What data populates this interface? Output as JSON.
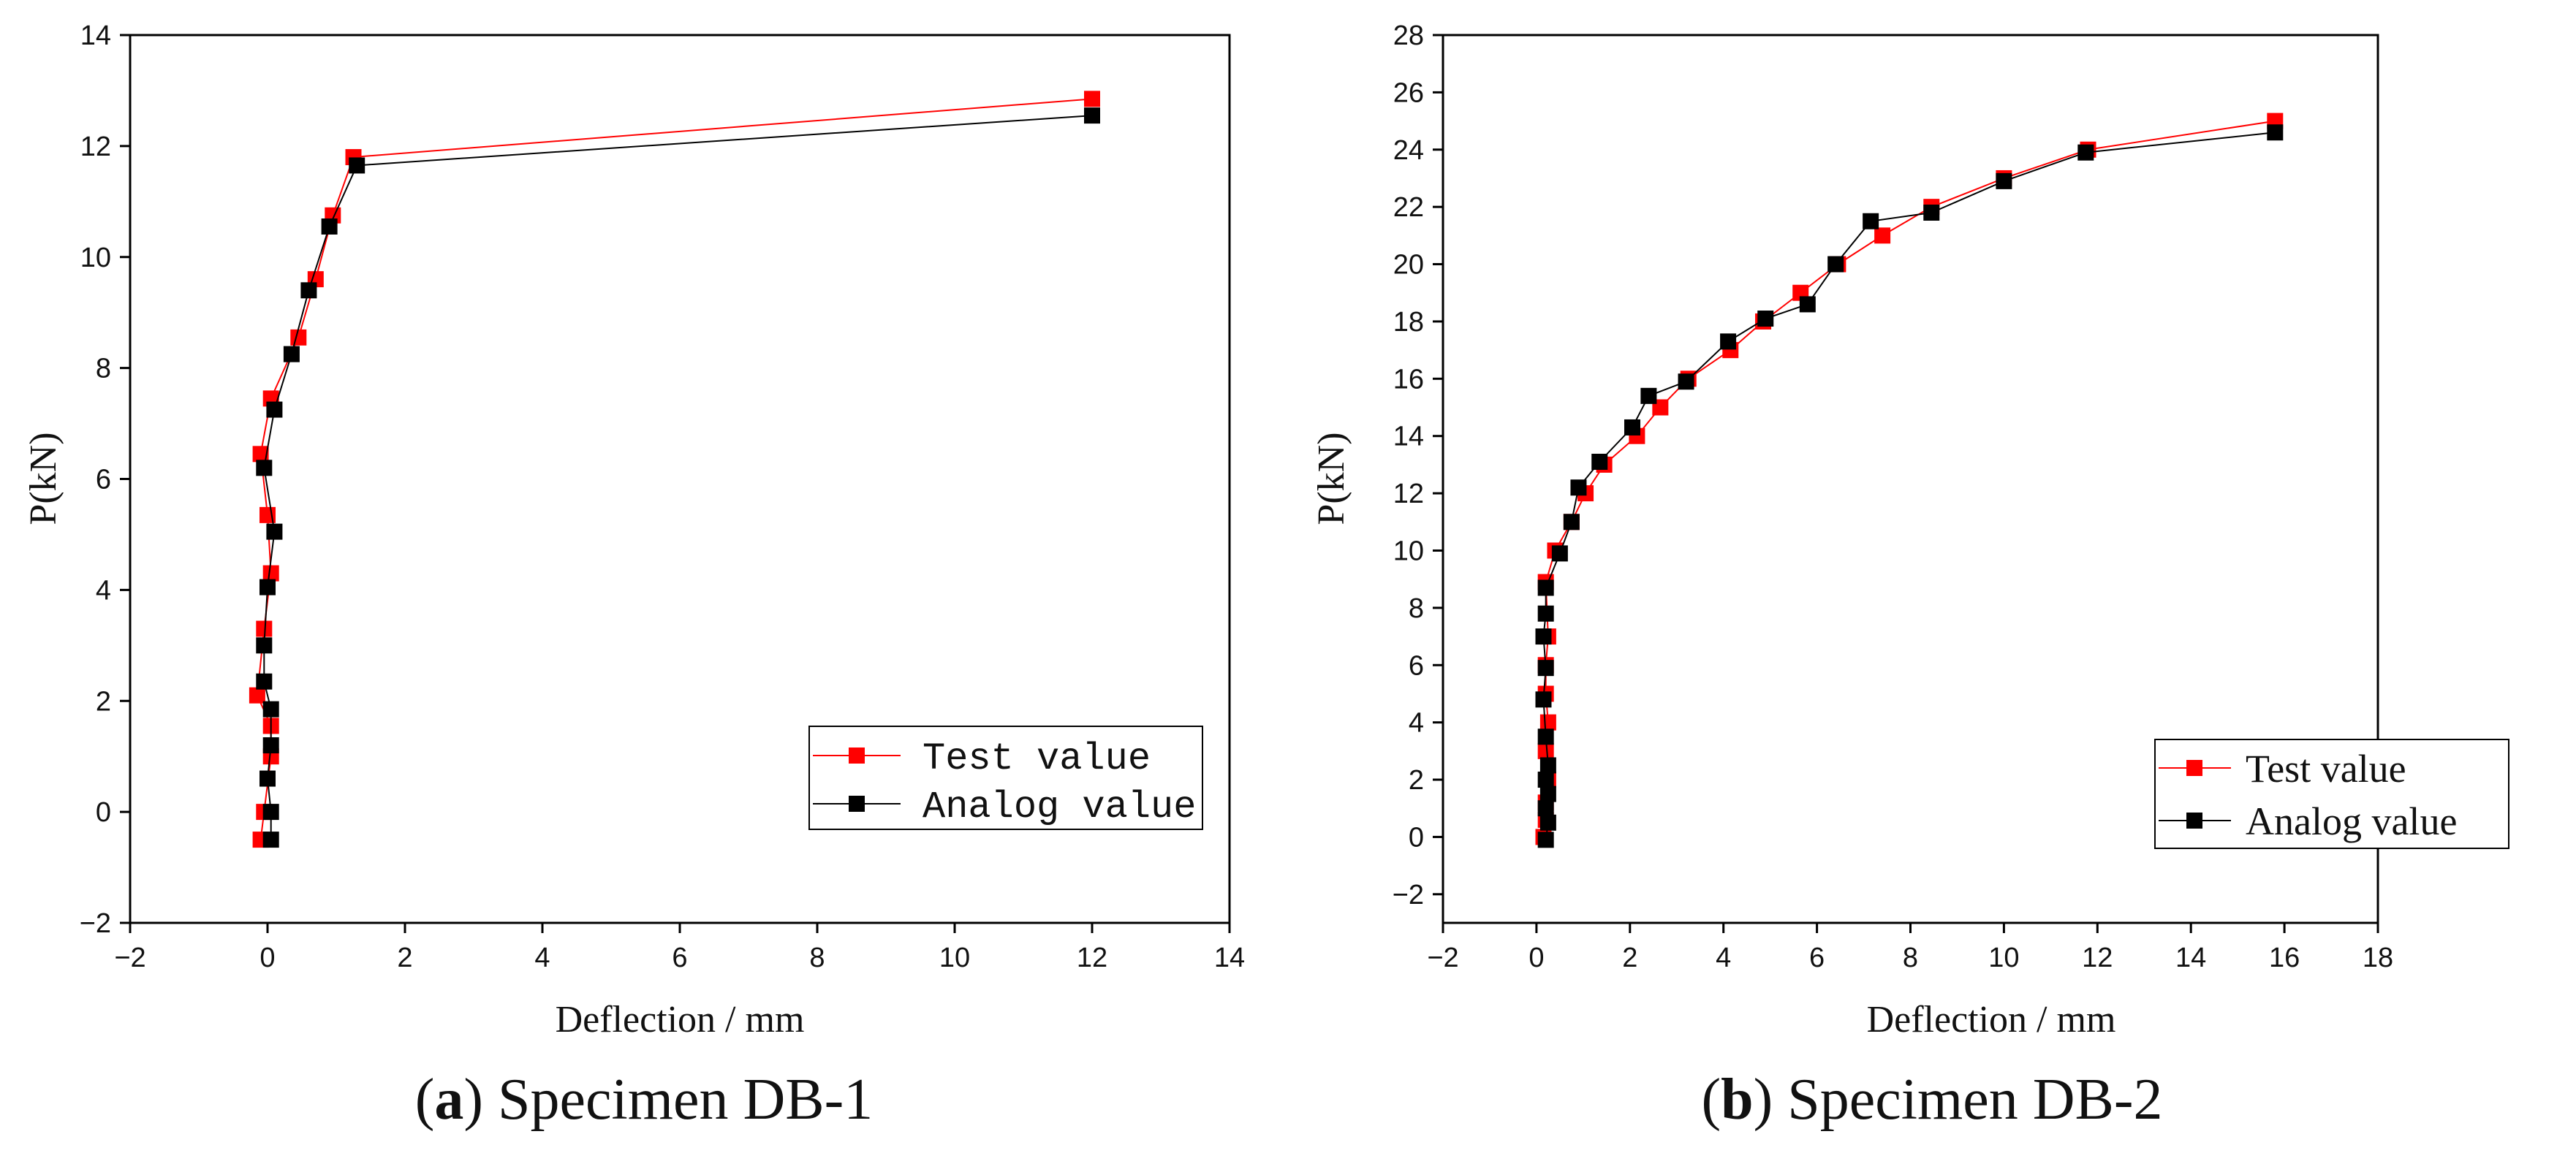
{
  "chart_data": [
    {
      "type": "line",
      "caption_tag": "a",
      "caption_text": "Specimen DB-1",
      "xlabel": "Deflection / mm",
      "ylabel": "P(kN)",
      "xlim": [
        -2,
        14
      ],
      "ylim": [
        -2,
        14
      ],
      "xticks": [
        "−2",
        "0",
        "2",
        "4",
        "6",
        "8",
        "10",
        "12",
        "14"
      ],
      "yticks": [
        "−2",
        "0",
        "2",
        "4",
        "6",
        "8",
        "10",
        "12",
        "14"
      ],
      "legend_position": "bottom-right",
      "series": [
        {
          "name": "Test value",
          "color": "#ff0000",
          "x": [
            -0.1,
            -0.05,
            0.05,
            0.05,
            -0.15,
            -0.05,
            0.05,
            0.0,
            -0.1,
            0.05,
            0.45,
            0.7,
            0.95,
            1.25,
            12.0
          ],
          "y": [
            -0.5,
            0.0,
            1.0,
            1.55,
            2.1,
            3.3,
            4.3,
            5.35,
            6.45,
            7.45,
            8.55,
            9.6,
            10.75,
            11.8,
            12.85
          ]
        },
        {
          "name": "Analog value",
          "color": "#000000",
          "x": [
            0.05,
            0.05,
            0.0,
            0.05,
            0.05,
            -0.05,
            -0.05,
            0.0,
            0.1,
            -0.05,
            0.1,
            0.35,
            0.6,
            0.9,
            1.3,
            12.0
          ],
          "y": [
            -0.5,
            0.0,
            0.6,
            1.2,
            1.85,
            2.35,
            3.0,
            4.05,
            5.05,
            6.2,
            7.25,
            8.25,
            9.4,
            10.55,
            11.65,
            12.55
          ]
        }
      ]
    },
    {
      "type": "line",
      "caption_tag": "b",
      "caption_text": "Specimen DB-2",
      "xlabel": "Deflection / mm",
      "ylabel": "P(kN)",
      "xlim": [
        -2,
        18
      ],
      "ylim": [
        -3,
        28
      ],
      "xticks": [
        "−2",
        "0",
        "2",
        "4",
        "6",
        "8",
        "10",
        "12",
        "14",
        "16",
        "18"
      ],
      "yticks": [
        "−2",
        "0",
        "2",
        "4",
        "6",
        "8",
        "10",
        "12",
        "14",
        "16",
        "18",
        "20",
        "22",
        "24",
        "26",
        "28"
      ],
      "legend_position": "bottom-right",
      "series": [
        {
          "name": "Test value",
          "color": "#ff0000",
          "x": [
            0.15,
            0.2,
            0.2,
            0.25,
            0.2,
            0.25,
            0.2,
            0.2,
            0.25,
            0.2,
            0.4,
            0.75,
            1.05,
            1.45,
            2.15,
            2.65,
            3.25,
            4.15,
            4.85,
            5.65,
            6.45,
            7.4,
            8.45,
            10.0,
            11.8,
            15.8
          ],
          "y": [
            0.0,
            0.6,
            1.2,
            2.0,
            3.0,
            4.0,
            5.0,
            6.0,
            7.0,
            8.9,
            10.0,
            11.0,
            12.0,
            13.0,
            14.0,
            15.0,
            16.0,
            17.0,
            18.0,
            19.0,
            20.0,
            21.0,
            22.0,
            23.0,
            24.0,
            25.0
          ]
        },
        {
          "name": "Analog value",
          "color": "#000000",
          "x": [
            0.2,
            0.25,
            0.2,
            0.25,
            0.2,
            0.25,
            0.2,
            0.15,
            0.2,
            0.15,
            0.2,
            0.2,
            0.5,
            0.75,
            0.9,
            1.35,
            2.05,
            2.4,
            3.2,
            4.1,
            4.9,
            5.8,
            6.4,
            7.15,
            8.45,
            10.0,
            11.75,
            15.8
          ],
          "y": [
            -0.1,
            0.5,
            1.0,
            1.5,
            2.0,
            2.5,
            3.5,
            4.8,
            5.9,
            7.0,
            7.8,
            8.7,
            9.9,
            11.0,
            12.2,
            13.1,
            14.3,
            15.4,
            15.9,
            17.3,
            18.1,
            18.6,
            20.0,
            21.5,
            21.8,
            22.9,
            23.9,
            24.6
          ]
        }
      ]
    }
  ]
}
